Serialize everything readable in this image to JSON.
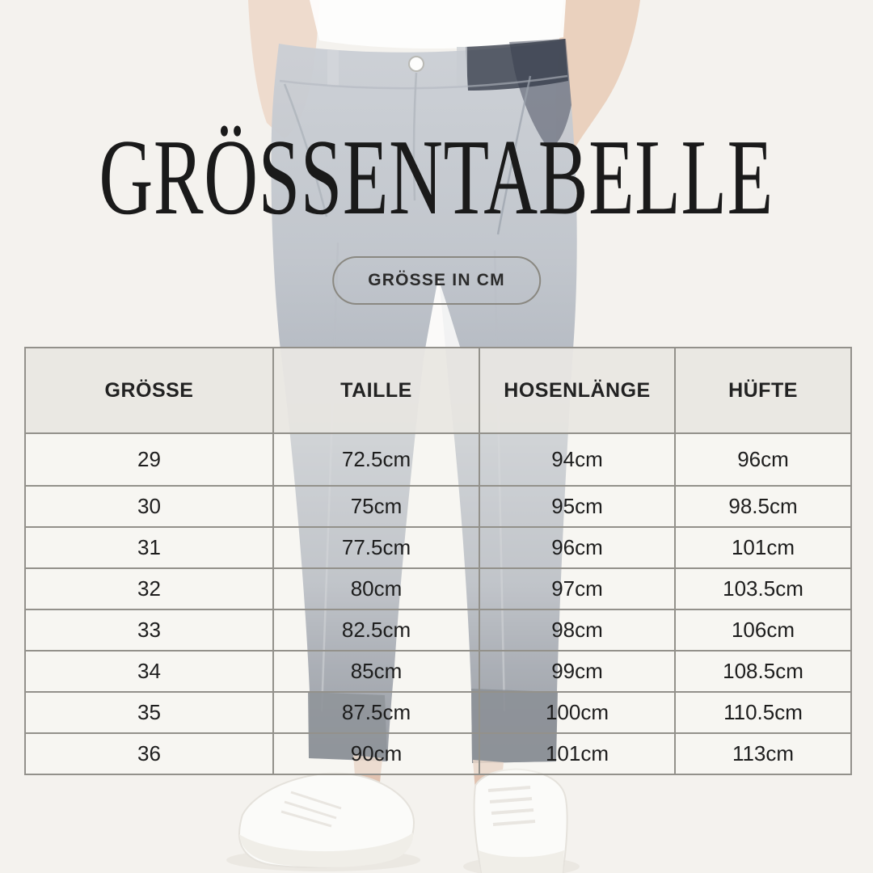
{
  "page": {
    "title": "GRÖSSENTABELLE",
    "badge_label": "GRÖSSE IN CM"
  },
  "photo": {
    "alt": "Faded background photo of a man in a white polo shirt and grey chino trousers, hands in pockets, wearing white sneakers"
  },
  "chart_data": {
    "type": "table",
    "title": "GRÖSSENTABELLE",
    "unit_label": "GRÖSSE IN CM",
    "columns": [
      "GRÖSSE",
      "TAILLE",
      "HOSENLÄNGE",
      "HÜFTE"
    ],
    "rows": [
      [
        "29",
        "72.5cm",
        "94cm",
        "96cm"
      ],
      [
        "30",
        "75cm",
        "95cm",
        "98.5cm"
      ],
      [
        "31",
        "77.5cm",
        "96cm",
        "101cm"
      ],
      [
        "32",
        "80cm",
        "97cm",
        "103.5cm"
      ],
      [
        "33",
        "82.5cm",
        "98cm",
        "106cm"
      ],
      [
        "34",
        "85cm",
        "99cm",
        "108.5cm"
      ],
      [
        "35",
        "87.5cm",
        "100cm",
        "110.5cm"
      ],
      [
        "36",
        "90cm",
        "101cm",
        "113cm"
      ]
    ]
  },
  "colors": {
    "background": "#f4f2ee",
    "title_text": "#1a1a1a",
    "table_border": "#93918b",
    "header_bg": "#e9e7e2",
    "header_text": "#222222",
    "cell_text": "#1d1d1d",
    "badge_border": "#8a8881",
    "badge_text": "#2b2b2b",
    "trouser_grey": "#bfc4cb",
    "trouser_cuff_navy": "#39414f"
  }
}
